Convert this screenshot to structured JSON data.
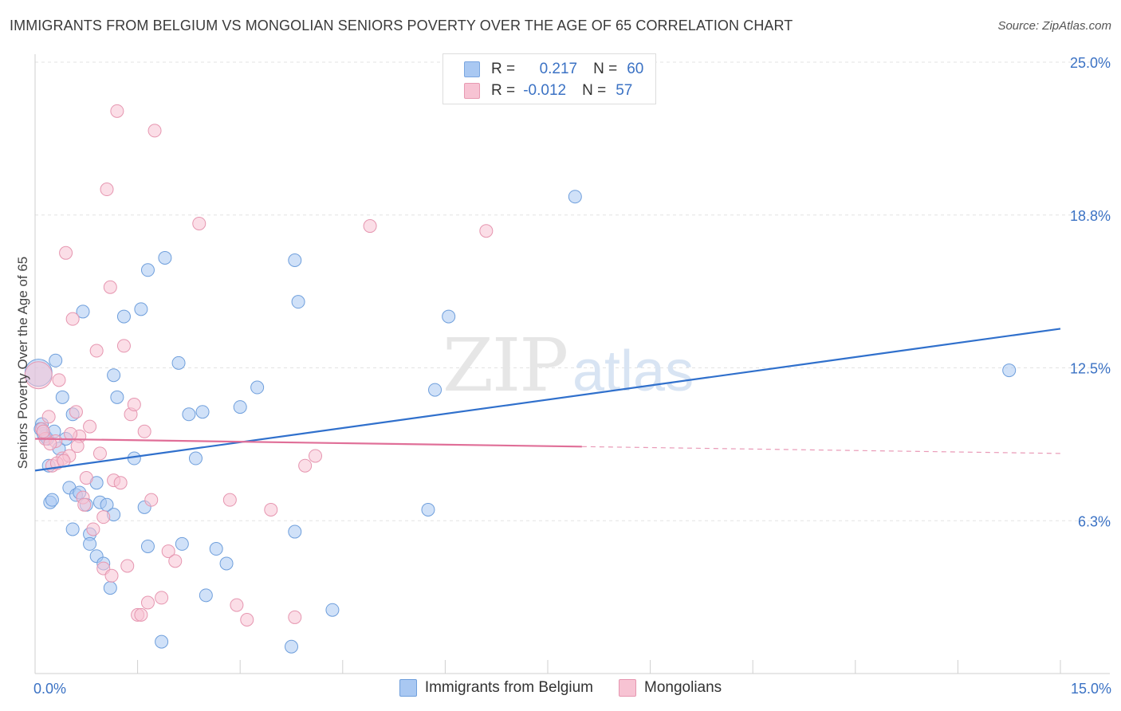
{
  "header": {
    "title": "IMMIGRANTS FROM BELGIUM VS MONGOLIAN SENIORS POVERTY OVER THE AGE OF 65 CORRELATION CHART",
    "source": "Source: ZipAtlas.com"
  },
  "watermark": {
    "part1": "ZIP",
    "part2": "atlas"
  },
  "legend_top": {
    "rows": [
      {
        "r_label": "R =",
        "r_value": "0.217",
        "n_label": "N =",
        "n_value": "60",
        "color": "#a9c8f2",
        "border": "#7aa6e0"
      },
      {
        "r_label": "R =",
        "r_value": "-0.012",
        "n_label": "N =",
        "n_value": "57",
        "color": "#f7c3d3",
        "border": "#e89ab2"
      }
    ]
  },
  "chart_data": {
    "type": "scatter",
    "title": "IMMIGRANTS FROM BELGIUM VS MONGOLIAN SENIORS POVERTY OVER THE AGE OF 65 CORRELATION CHART",
    "xlabel": "",
    "ylabel": "Seniors Poverty Over the Age of 65",
    "xlim": [
      0,
      15
    ],
    "ylim": [
      0,
      25
    ],
    "x_tick_labels": [
      "0.0%",
      "15.0%"
    ],
    "y_ticks": [
      6.25,
      12.5,
      18.75,
      25
    ],
    "y_tick_labels": [
      "6.3%",
      "12.5%",
      "18.8%",
      "25.0%"
    ],
    "grid": true,
    "legend_position": "bottom",
    "series": [
      {
        "name": "Immigrants from Belgium",
        "color": "#a9c8f2",
        "stroke": "#6f9fdc",
        "trend": {
          "x": [
            0,
            15
          ],
          "y": [
            8.3,
            14.1
          ],
          "color": "#3070cc",
          "dashed_from": null
        },
        "points": [
          [
            0.05,
            12.3
          ],
          [
            0.1,
            10.2
          ],
          [
            0.12,
            9.8
          ],
          [
            0.15,
            9.7
          ],
          [
            0.2,
            8.5
          ],
          [
            0.22,
            7.0
          ],
          [
            0.25,
            7.1
          ],
          [
            0.3,
            12.8
          ],
          [
            0.35,
            9.2
          ],
          [
            0.4,
            11.3
          ],
          [
            0.45,
            9.6
          ],
          [
            0.5,
            7.6
          ],
          [
            0.55,
            5.9
          ],
          [
            0.55,
            10.6
          ],
          [
            0.6,
            7.3
          ],
          [
            0.65,
            7.4
          ],
          [
            0.7,
            14.8
          ],
          [
            0.75,
            6.9
          ],
          [
            0.8,
            5.7
          ],
          [
            0.8,
            5.3
          ],
          [
            0.9,
            4.8
          ],
          [
            0.9,
            7.8
          ],
          [
            0.95,
            7.0
          ],
          [
            1.0,
            4.5
          ],
          [
            1.05,
            6.9
          ],
          [
            1.1,
            3.5
          ],
          [
            1.15,
            12.2
          ],
          [
            1.15,
            6.5
          ],
          [
            1.2,
            11.3
          ],
          [
            1.3,
            14.6
          ],
          [
            1.45,
            8.8
          ],
          [
            1.55,
            14.9
          ],
          [
            1.6,
            6.8
          ],
          [
            1.65,
            16.5
          ],
          [
            1.65,
            5.2
          ],
          [
            1.85,
            1.3
          ],
          [
            1.9,
            17.0
          ],
          [
            2.1,
            12.7
          ],
          [
            2.15,
            5.3
          ],
          [
            2.25,
            10.6
          ],
          [
            2.35,
            8.8
          ],
          [
            2.45,
            10.7
          ],
          [
            2.5,
            3.2
          ],
          [
            2.65,
            5.1
          ],
          [
            2.8,
            4.5
          ],
          [
            3.0,
            10.9
          ],
          [
            3.25,
            11.7
          ],
          [
            3.75,
            1.1
          ],
          [
            3.8,
            5.8
          ],
          [
            3.8,
            16.9
          ],
          [
            3.85,
            15.2
          ],
          [
            4.35,
            2.6
          ],
          [
            5.75,
            6.7
          ],
          [
            5.85,
            11.6
          ],
          [
            6.05,
            14.6
          ],
          [
            7.9,
            19.5
          ],
          [
            14.25,
            12.4
          ],
          [
            0.08,
            10.0
          ],
          [
            0.18,
            9.6
          ],
          [
            0.28,
            9.9
          ]
        ]
      },
      {
        "name": "Mongolians",
        "color": "#f7c3d3",
        "stroke": "#e696b0",
        "trend": {
          "x": [
            0,
            15
          ],
          "y": [
            9.6,
            9.0
          ],
          "color": "#e06f98",
          "dashed_from": 8.0
        },
        "points": [
          [
            0.05,
            12.2
          ],
          [
            0.1,
            10.0
          ],
          [
            0.15,
            9.6
          ],
          [
            0.2,
            10.5
          ],
          [
            0.25,
            8.5
          ],
          [
            0.3,
            9.5
          ],
          [
            0.35,
            12.0
          ],
          [
            0.4,
            8.8
          ],
          [
            0.45,
            17.2
          ],
          [
            0.5,
            8.9
          ],
          [
            0.55,
            14.5
          ],
          [
            0.6,
            10.7
          ],
          [
            0.65,
            9.7
          ],
          [
            0.7,
            7.2
          ],
          [
            0.75,
            8.0
          ],
          [
            0.8,
            10.1
          ],
          [
            0.85,
            5.9
          ],
          [
            0.9,
            13.2
          ],
          [
            0.95,
            9.0
          ],
          [
            1.0,
            4.3
          ],
          [
            1.0,
            6.4
          ],
          [
            1.05,
            19.8
          ],
          [
            1.1,
            15.8
          ],
          [
            1.15,
            7.9
          ],
          [
            1.2,
            23.0
          ],
          [
            1.25,
            7.8
          ],
          [
            1.3,
            13.4
          ],
          [
            1.35,
            4.4
          ],
          [
            1.4,
            10.6
          ],
          [
            1.45,
            11.0
          ],
          [
            1.5,
            2.4
          ],
          [
            1.55,
            2.4
          ],
          [
            1.6,
            9.9
          ],
          [
            1.65,
            2.9
          ],
          [
            1.7,
            7.1
          ],
          [
            1.75,
            22.2
          ],
          [
            1.85,
            3.1
          ],
          [
            1.95,
            5.0
          ],
          [
            2.05,
            4.6
          ],
          [
            2.4,
            18.4
          ],
          [
            2.85,
            7.1
          ],
          [
            2.95,
            2.8
          ],
          [
            3.1,
            2.2
          ],
          [
            3.45,
            6.7
          ],
          [
            3.8,
            2.3
          ],
          [
            3.95,
            8.5
          ],
          [
            4.1,
            8.9
          ],
          [
            4.9,
            18.3
          ],
          [
            6.6,
            18.1
          ],
          [
            0.12,
            9.9
          ],
          [
            0.22,
            9.4
          ],
          [
            0.32,
            8.6
          ],
          [
            0.42,
            8.7
          ],
          [
            0.52,
            9.8
          ],
          [
            0.62,
            9.3
          ],
          [
            0.72,
            6.9
          ],
          [
            1.12,
            4.0
          ]
        ]
      }
    ]
  }
}
